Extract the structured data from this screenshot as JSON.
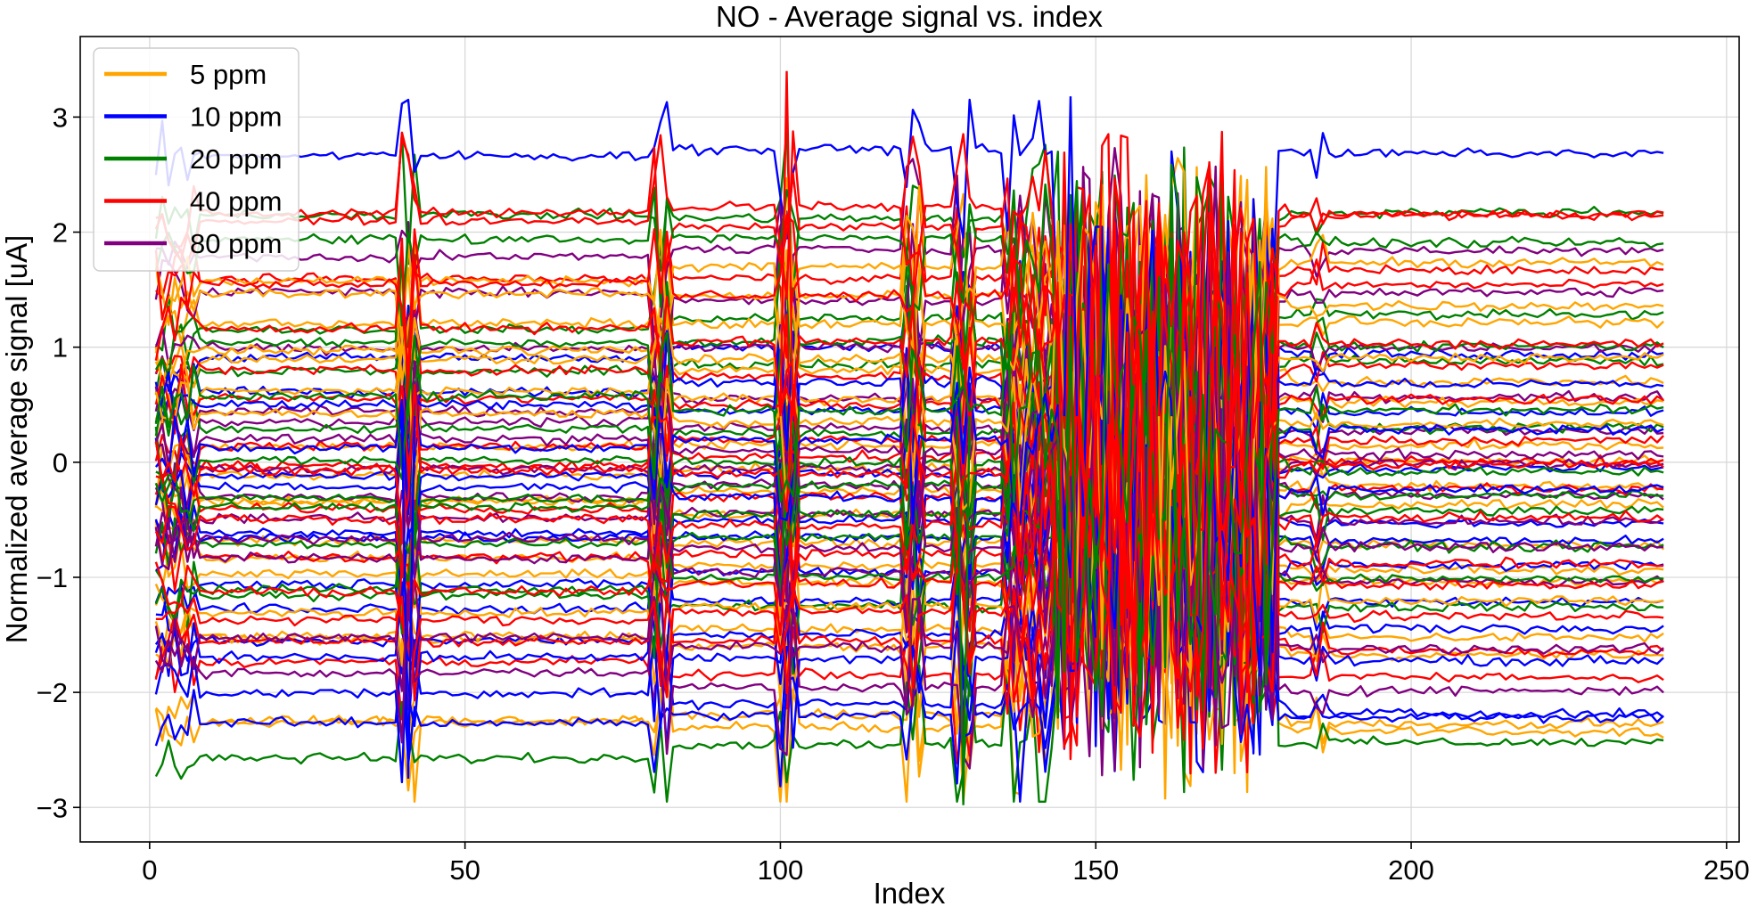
{
  "chart_data": {
    "type": "line",
    "title": "NO - Average signal vs. index",
    "xlabel": "Index",
    "ylabel": "Normalized average signal [uA]",
    "xlim": [
      -11,
      252
    ],
    "ylim": [
      -3.3,
      3.7
    ],
    "xticks": [
      0,
      50,
      100,
      150,
      200,
      250
    ],
    "xtick_labels": [
      "0",
      "50",
      "100",
      "150",
      "200",
      "250"
    ],
    "yticks": [
      -3,
      -2,
      -1,
      0,
      1,
      2,
      3
    ],
    "ytick_labels": [
      "−3",
      "−2",
      "−1",
      "0",
      "1",
      "2",
      "3"
    ],
    "grid": true,
    "legend_position": "top-left",
    "series": [
      {
        "name": "5 ppm",
        "color": "#FFA500",
        "levels": [
          -2.3,
          -2.2,
          -1.6,
          -1.45,
          -1.25,
          -1.05,
          -0.9,
          -0.7,
          -0.45,
          -0.25,
          -0.05,
          0.15,
          0.35,
          0.55,
          0.8,
          0.9,
          1.2,
          1.45,
          1.7
        ]
      },
      {
        "name": "10 ppm",
        "color": "#0000FF",
        "levels": [
          2.72,
          1.0,
          0.7,
          0.45,
          0.2,
          -0.1,
          -0.3,
          -0.5,
          -0.65,
          -0.95,
          -1.2,
          -1.5,
          -1.7,
          -2.1,
          -2.2
        ]
      },
      {
        "name": "20 ppm",
        "color": "#008000",
        "levels": [
          -2.45,
          -1.25,
          -1.0,
          -0.65,
          -0.45,
          -0.2,
          0.0,
          0.25,
          0.45,
          0.85,
          1.05,
          1.25,
          1.95,
          2.12
        ]
      },
      {
        "name": "40 ppm",
        "color": "#FF0000",
        "levels": [
          2.22,
          2.05,
          1.6,
          1.45,
          1.05,
          0.75,
          0.5,
          0.2,
          0.05,
          -0.1,
          -0.3,
          -0.55,
          -0.8,
          -1.05,
          -1.3,
          -1.55,
          -1.85
        ]
      },
      {
        "name": "80 ppm",
        "color": "#800080",
        "levels": [
          1.85,
          1.4,
          1.0,
          0.55,
          0.3,
          0.1,
          -0.05,
          -0.2,
          -0.45,
          -0.75,
          -0.95,
          -1.6,
          -1.95
        ]
      }
    ],
    "x_range": [
      1,
      240
    ],
    "transition_indices": [
      41,
      81,
      101,
      121,
      129,
      137,
      141
    ],
    "noisy_region": [
      144,
      178
    ],
    "spike_annotations": [
      {
        "series": "40 ppm",
        "x": 101,
        "y": 3.4
      },
      {
        "series": "20 ppm",
        "x": 129,
        "y": -2.98
      },
      {
        "series": "5 ppm",
        "x": 161,
        "y": -2.93
      },
      {
        "series": "10 ppm",
        "x": 41,
        "y": -2.75
      },
      {
        "series": "10 ppm",
        "x": 146,
        "y": 3.18
      }
    ]
  }
}
